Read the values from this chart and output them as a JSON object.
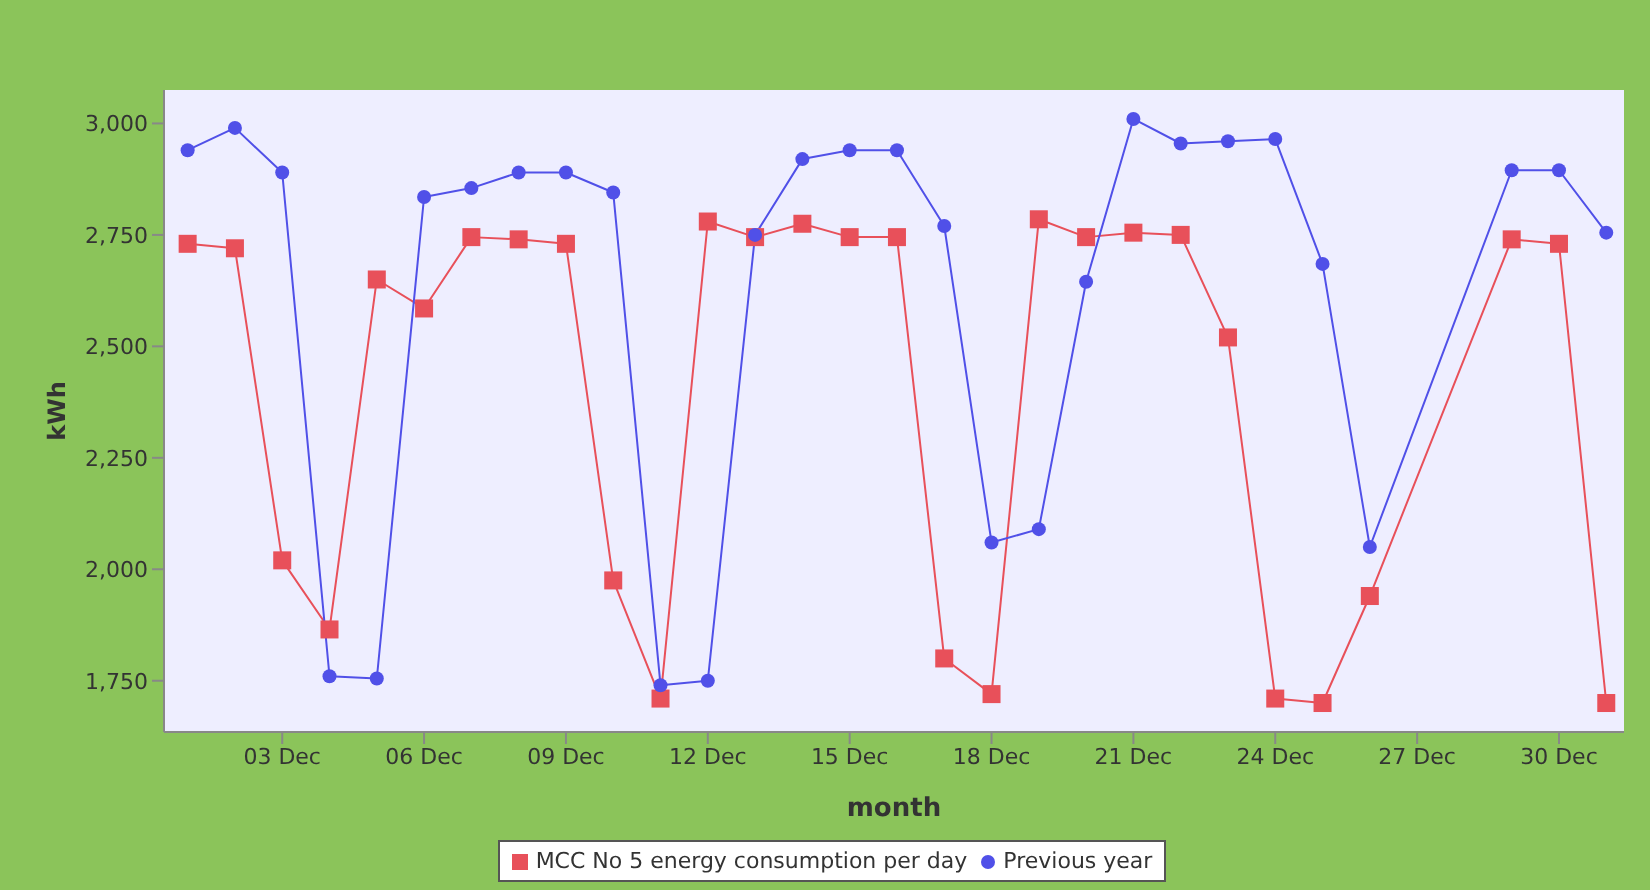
{
  "chart_data": {
    "type": "line",
    "xlabel": "month",
    "ylabel": "kWh",
    "xlim": [
      "--11-30T12:00",
      "--12-31T09:00"
    ],
    "xticks": [
      {
        "value": "--12-03",
        "label": "03 Dec"
      },
      {
        "value": "--12-06",
        "label": "06 Dec"
      },
      {
        "value": "--12-09",
        "label": "09 Dec"
      },
      {
        "value": "--12-12",
        "label": "12 Dec"
      },
      {
        "value": "--12-15",
        "label": "15 Dec"
      },
      {
        "value": "--12-18",
        "label": "18 Dec"
      },
      {
        "value": "--12-21",
        "label": "21 Dec"
      },
      {
        "value": "--12-24",
        "label": "24 Dec"
      },
      {
        "value": "--12-27",
        "label": "27 Dec"
      },
      {
        "value": "--12-30",
        "label": "30 Dec"
      }
    ],
    "ylim": [
      1635,
      3075
    ],
    "yticks": [
      {
        "value": 1750,
        "label": "1,750"
      },
      {
        "value": 2000,
        "label": "2,000"
      },
      {
        "value": 2250,
        "label": "2,250"
      },
      {
        "value": 2500,
        "label": "2,500"
      },
      {
        "value": 2750,
        "label": "2,750"
      },
      {
        "value": 3000,
        "label": "3,000"
      }
    ],
    "grid": false,
    "legend": "bottom",
    "series": [
      {
        "name": "MCC No 5 energy consumption per day",
        "color": "#e8505a",
        "marker": "square",
        "x": [
          "--12-01",
          "--12-02",
          "--12-03",
          "--12-04",
          "--12-05",
          "--12-06",
          "--12-07",
          "--12-08",
          "--12-09",
          "--12-10",
          "--12-11",
          "--12-12",
          "--12-13",
          "--12-14",
          "--12-15",
          "--12-16",
          "--12-17",
          "--12-18",
          "--12-19",
          "--12-20",
          "--12-21",
          "--12-22",
          "--12-23",
          "--12-24",
          "--12-25",
          "--12-26",
          "--12-29",
          "--12-30",
          "--12-31"
        ],
        "values": [
          2730,
          2720,
          2020,
          1865,
          2650,
          2585,
          2745,
          2740,
          2730,
          1975,
          1710,
          2780,
          2745,
          2775,
          2745,
          2745,
          1800,
          1720,
          2785,
          2745,
          2755,
          2750,
          2520,
          1710,
          1700,
          1940,
          2740,
          2730,
          1700
        ]
      },
      {
        "name": "Previous year",
        "color": "#5050e8",
        "marker": "circle",
        "x": [
          "--12-01",
          "--12-02",
          "--12-03",
          "--12-04",
          "--12-05",
          "--12-06",
          "--12-07",
          "--12-08",
          "--12-09",
          "--12-10",
          "--12-11",
          "--12-12",
          "--12-13",
          "--12-14",
          "--12-15",
          "--12-16",
          "--12-17",
          "--12-18",
          "--12-19",
          "--12-20",
          "--12-21",
          "--12-22",
          "--12-23",
          "--12-24",
          "--12-25",
          "--12-26",
          "--12-29",
          "--12-30",
          "--12-31"
        ],
        "values": [
          2940,
          2990,
          2890,
          1760,
          1755,
          2835,
          2855,
          2890,
          2890,
          2845,
          1740,
          1750,
          2750,
          2920,
          2940,
          2940,
          2770,
          2060,
          2090,
          2645,
          3010,
          2955,
          2960,
          2965,
          2685,
          2050,
          2895,
          2895,
          2755
        ]
      }
    ]
  }
}
